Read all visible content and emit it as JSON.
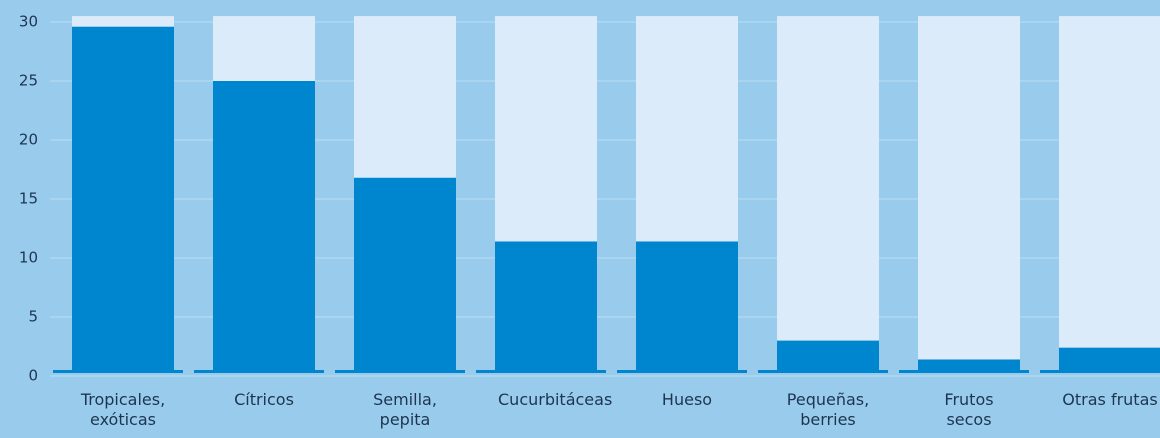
{
  "chart_data": {
    "type": "bar",
    "categories": [
      "Tropicales, exóticas",
      "Cítricos",
      "Semilla, pepita",
      "Cucurbitáceas",
      "Hueso",
      "Pequeñas, berries",
      "Frutos secos",
      "Otras frutas"
    ],
    "values": [
      29.6,
      25,
      16.8,
      11.4,
      11.4,
      3.0,
      1.4,
      2.4
    ],
    "color": "#0086cf",
    "track_color": "#dcebfa",
    "ylim": [
      0,
      30.5
    ],
    "yticks": [
      0,
      5,
      10,
      15,
      20,
      25,
      30
    ],
    "grid": true
  }
}
